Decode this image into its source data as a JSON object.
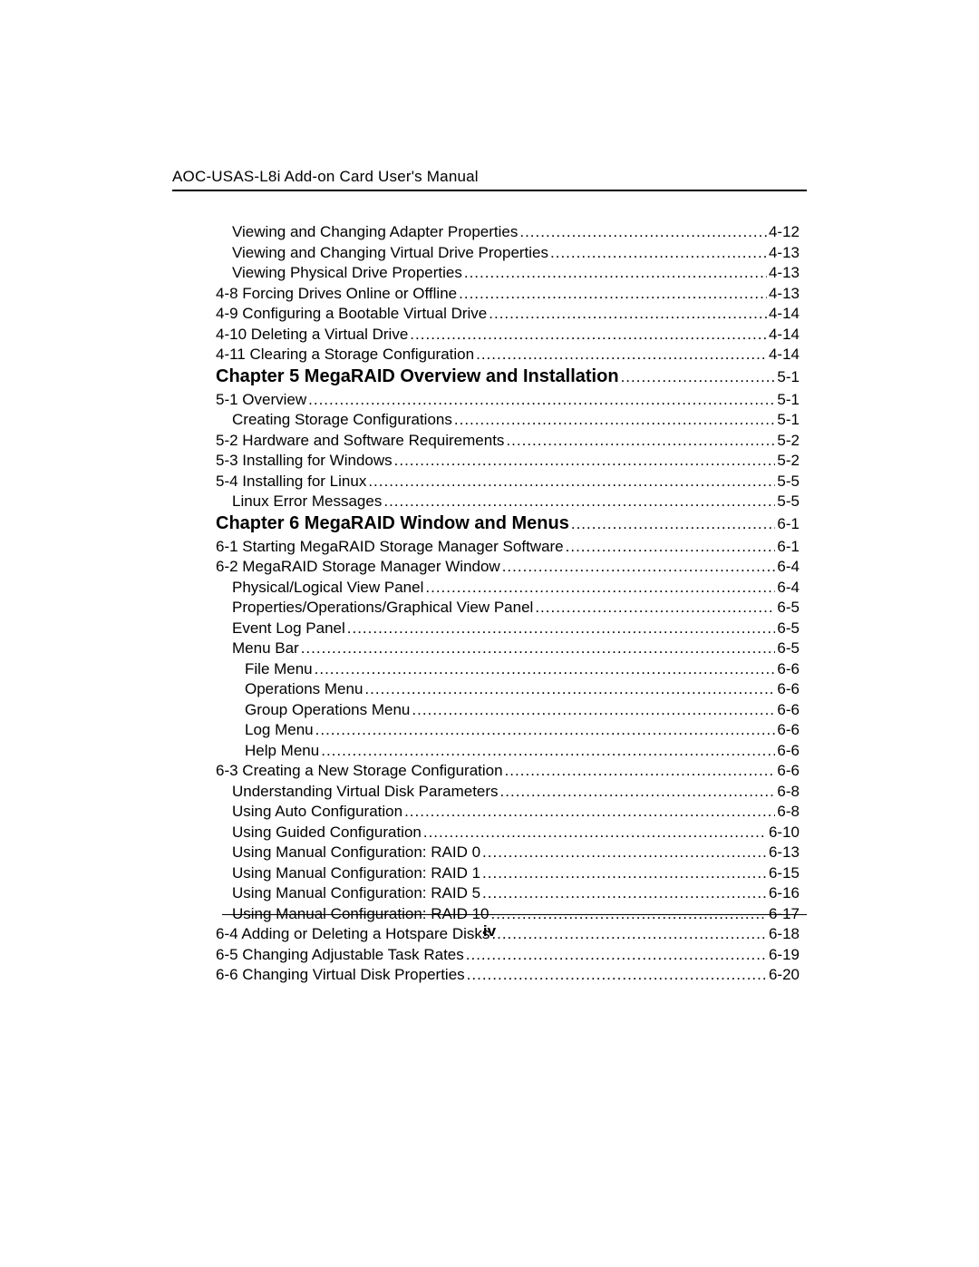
{
  "header": "AOC-USAS-L8i Add-on Card User's Manual",
  "footer_page": "iv",
  "entries": [
    {
      "indent": 1,
      "label": "Viewing and Changing Adapter Properties",
      "page": "4-12",
      "chapter": false
    },
    {
      "indent": 1,
      "label": "Viewing and Changing Virtual Drive Properties",
      "page": "4-13",
      "chapter": false
    },
    {
      "indent": 1,
      "label": "Viewing Physical Drive Properties",
      "page": "4-13",
      "chapter": false
    },
    {
      "indent": 0,
      "label": "4-8 Forcing Drives Online or Offline",
      "page": "4-13",
      "chapter": false
    },
    {
      "indent": 0,
      "label": "4-9 Configuring a Bootable Virtual Drive",
      "page": "4-14",
      "chapter": false
    },
    {
      "indent": 0,
      "label": "4-10 Deleting a Virtual Drive",
      "page": "4-14",
      "chapter": false
    },
    {
      "indent": 0,
      "label": "4-11 Clearing a Storage Configuration",
      "page": "4-14",
      "chapter": false
    },
    {
      "indent": 0,
      "label": "Chapter 5 MegaRAID Overview and Installation",
      "page": "5-1",
      "chapter": true
    },
    {
      "indent": 0,
      "label": "5-1 Overview",
      "page": "5-1",
      "chapter": false
    },
    {
      "indent": 1,
      "label": "Creating Storage Configurations",
      "page": "5-1",
      "chapter": false
    },
    {
      "indent": 0,
      "label": "5-2 Hardware and Software Requirements",
      "page": "5-2",
      "chapter": false
    },
    {
      "indent": 0,
      "label": "5-3 Installing for Windows",
      "page": "5-2",
      "chapter": false
    },
    {
      "indent": 0,
      "label": "5-4 Installing for Linux",
      "page": "5-5",
      "chapter": false
    },
    {
      "indent": 1,
      "label": "Linux Error Messages",
      "page": "5-5",
      "chapter": false
    },
    {
      "indent": 0,
      "label": "Chapter 6 MegaRAID Window and Menus",
      "page": "6-1",
      "chapter": true
    },
    {
      "indent": 0,
      "label": "6-1 Starting MegaRAID Storage Manager Software",
      "page": "6-1",
      "chapter": false
    },
    {
      "indent": 0,
      "label": "6-2 MegaRAID Storage Manager Window",
      "page": "6-4",
      "chapter": false
    },
    {
      "indent": 1,
      "label": "Physical/Logical View Panel",
      "page": "6-4",
      "chapter": false
    },
    {
      "indent": 1,
      "label": "Properties/Operations/Graphical View Panel",
      "page": "6-5",
      "chapter": false
    },
    {
      "indent": 1,
      "label": "Event Log Panel",
      "page": "6-5",
      "chapter": false
    },
    {
      "indent": 1,
      "label": "Menu Bar",
      "page": "6-5",
      "chapter": false
    },
    {
      "indent": 2,
      "label": "File Menu",
      "page": "6-6",
      "chapter": false
    },
    {
      "indent": 2,
      "label": "Operations Menu",
      "page": "6-6",
      "chapter": false
    },
    {
      "indent": 2,
      "label": "Group Operations Menu",
      "page": "6-6",
      "chapter": false
    },
    {
      "indent": 2,
      "label": "Log Menu",
      "page": "6-6",
      "chapter": false
    },
    {
      "indent": 2,
      "label": "Help Menu",
      "page": "6-6",
      "chapter": false
    },
    {
      "indent": 0,
      "label": "6-3 Creating a New Storage Configuration",
      "page": "6-6",
      "chapter": false
    },
    {
      "indent": 1,
      "label": "Understanding Virtual Disk Parameters",
      "page": "6-8",
      "chapter": false
    },
    {
      "indent": 1,
      "label": "Using Auto Configuration",
      "page": "6-8",
      "chapter": false
    },
    {
      "indent": 1,
      "label": "Using Guided Configuration",
      "page": "6-10",
      "chapter": false
    },
    {
      "indent": 1,
      "label": "Using Manual Configuration: RAID 0",
      "page": "6-13",
      "chapter": false
    },
    {
      "indent": 1,
      "label": "Using Manual Configuration: RAID 1",
      "page": "6-15",
      "chapter": false
    },
    {
      "indent": 1,
      "label": "Using Manual Configuration: RAID 5",
      "page": "6-16",
      "chapter": false
    },
    {
      "indent": 1,
      "label": "Using Manual Configuration: RAID 10",
      "page": "6-17",
      "chapter": false
    },
    {
      "indent": 0,
      "label": "6-4 Adding or Deleting a Hotspare Disks",
      "page": "6-18",
      "chapter": false
    },
    {
      "indent": 0,
      "label": "6-5 Changing Adjustable Task Rates",
      "page": "6-19",
      "chapter": false
    },
    {
      "indent": 0,
      "label": "6-6 Changing Virtual Disk Properties",
      "page": "6-20",
      "chapter": false
    }
  ]
}
